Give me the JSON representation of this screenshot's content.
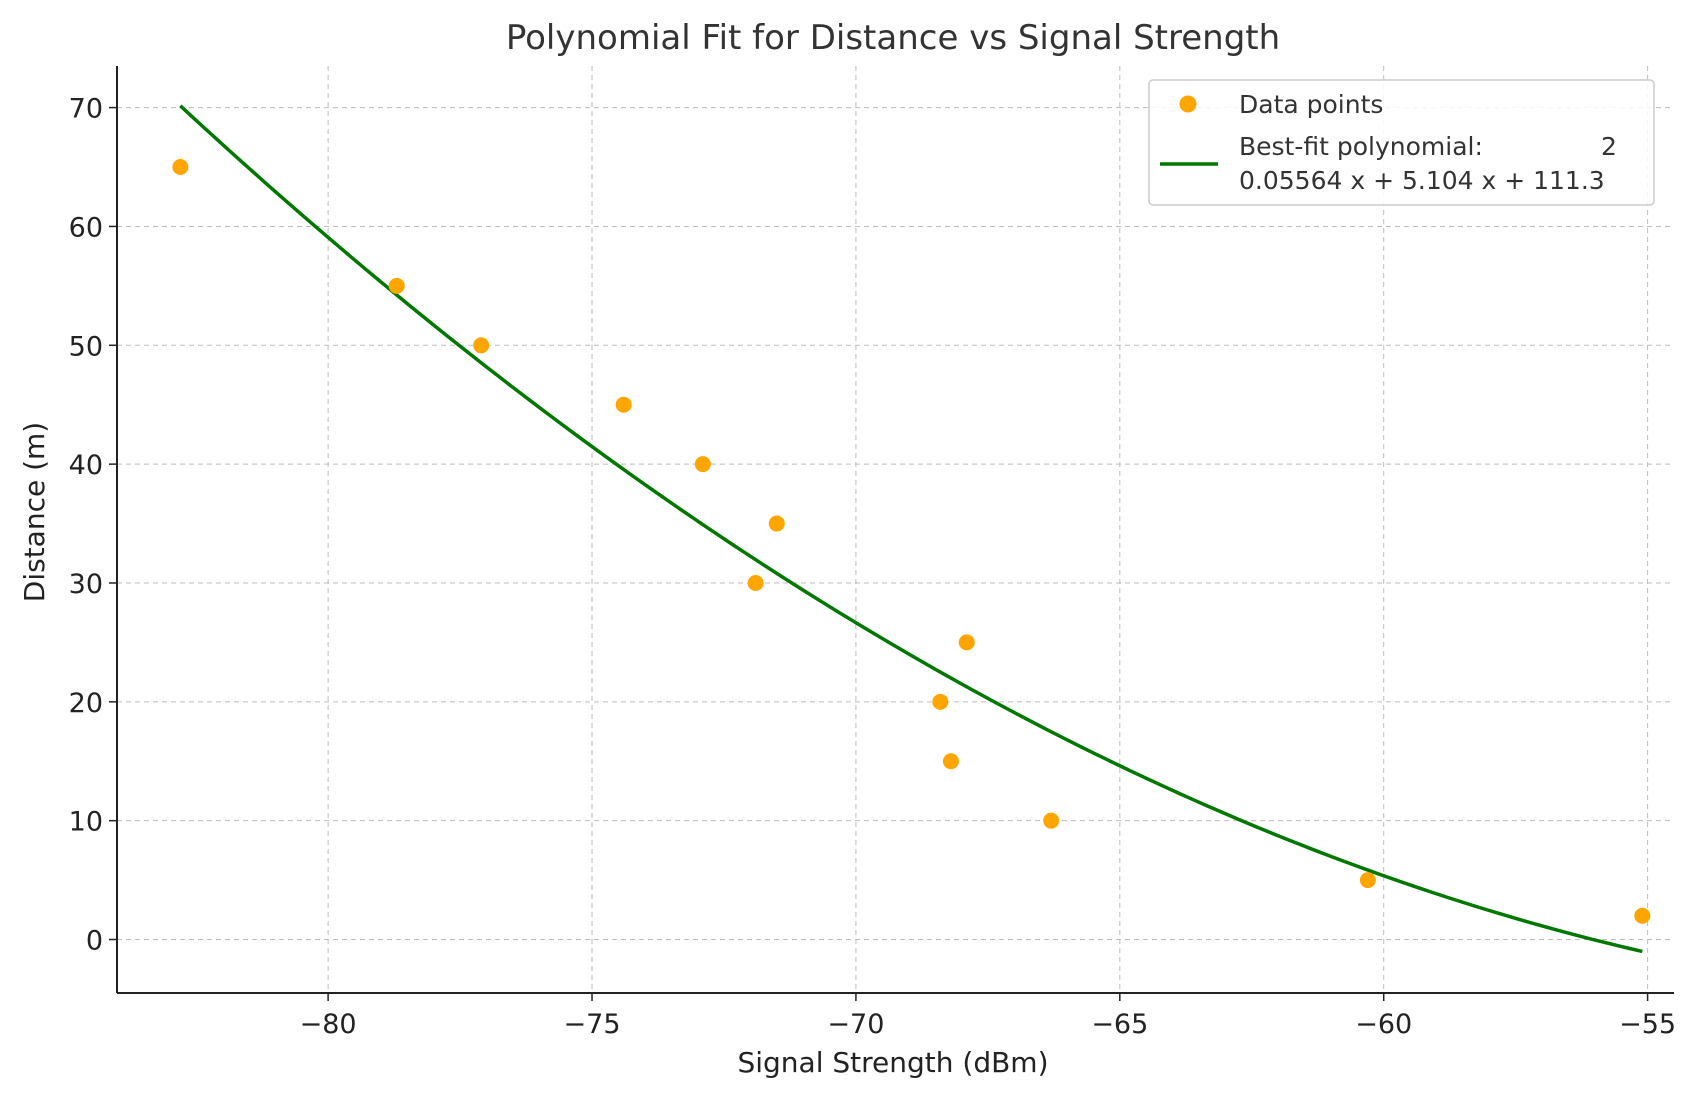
{
  "chart_data": {
    "type": "scatter",
    "title": "Polynomial Fit for Distance vs Signal Strength",
    "xlabel": "Signal Strength (dBm)",
    "ylabel": "Distance (m)",
    "xlim": [
      -84.0,
      -54.5
    ],
    "ylim": [
      -4.5,
      73.5
    ],
    "xticks": [
      -80,
      -75,
      -70,
      -65,
      -60,
      -55
    ],
    "xtick_labels": [
      "−80",
      "−75",
      "−70",
      "−65",
      "−60",
      "−55"
    ],
    "yticks": [
      0,
      10,
      20,
      30,
      40,
      50,
      60,
      70
    ],
    "ytick_labels": [
      "0",
      "10",
      "20",
      "30",
      "40",
      "50",
      "60",
      "70"
    ],
    "grid": true,
    "legend_position": "top-right",
    "series": [
      {
        "name": "Data points",
        "kind": "scatter",
        "color": "#FFA500",
        "points": [
          {
            "x": -82.8,
            "y": 65
          },
          {
            "x": -78.7,
            "y": 55
          },
          {
            "x": -77.1,
            "y": 50
          },
          {
            "x": -74.4,
            "y": 45
          },
          {
            "x": -72.9,
            "y": 40
          },
          {
            "x": -71.5,
            "y": 35
          },
          {
            "x": -71.9,
            "y": 30
          },
          {
            "x": -67.9,
            "y": 25
          },
          {
            "x": -68.4,
            "y": 20
          },
          {
            "x": -68.2,
            "y": 15
          },
          {
            "x": -66.3,
            "y": 10
          },
          {
            "x": -60.3,
            "y": 5
          },
          {
            "x": -55.1,
            "y": 2
          }
        ]
      },
      {
        "name": "Best-fit polynomial:",
        "name_exponent": "2",
        "name_equation": "0.05564 x + 5.104 x + 111.3",
        "kind": "line",
        "color": "#007800",
        "coefficients": [
          0.05564,
          5.104,
          111.3
        ],
        "x_range": [
          -82.8,
          -55.1
        ]
      }
    ]
  }
}
